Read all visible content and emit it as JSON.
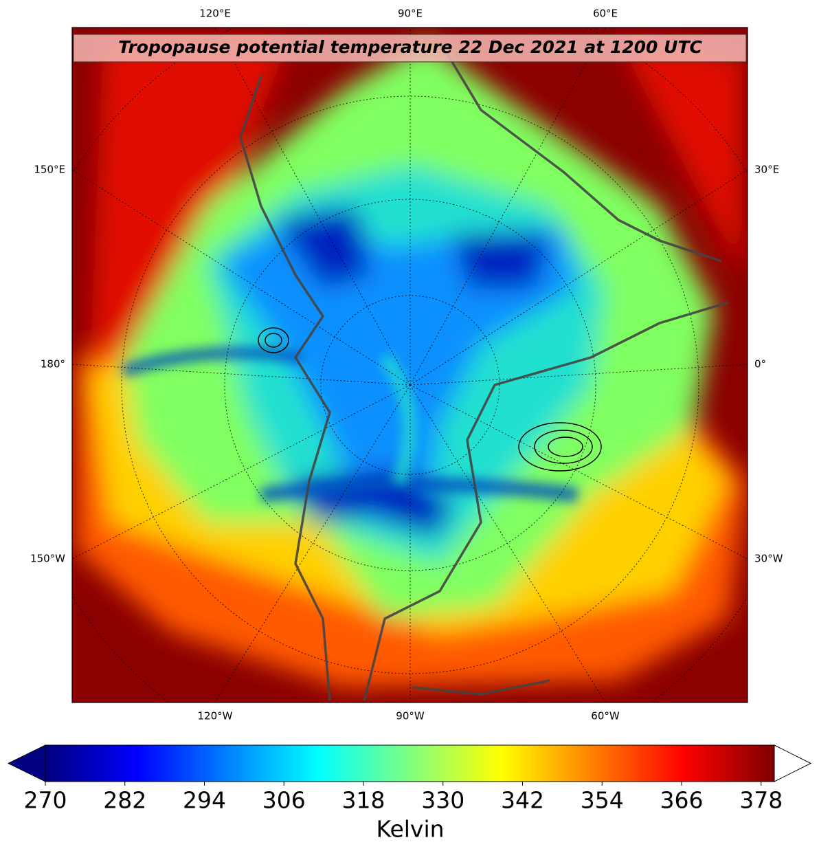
{
  "title": "Tropopause potential temperature 22 Dec 2021 at 1200 UTC",
  "map": {
    "labels": {
      "top": [
        "120°E",
        "90°E",
        "60°E"
      ],
      "bottom": [
        "120°W",
        "90°W",
        "60°W"
      ],
      "left": [
        "150°E",
        "180°",
        "150°W"
      ],
      "right": [
        "30°E",
        "0°",
        "30°W"
      ]
    }
  },
  "colorbar": {
    "colormap": "jet",
    "lim": [
      270,
      380
    ],
    "ticks": [
      270,
      282,
      294,
      306,
      318,
      330,
      342,
      354,
      366,
      378
    ],
    "label": "Kelvin",
    "extend": "both",
    "over_color": "#ffffff"
  }
}
